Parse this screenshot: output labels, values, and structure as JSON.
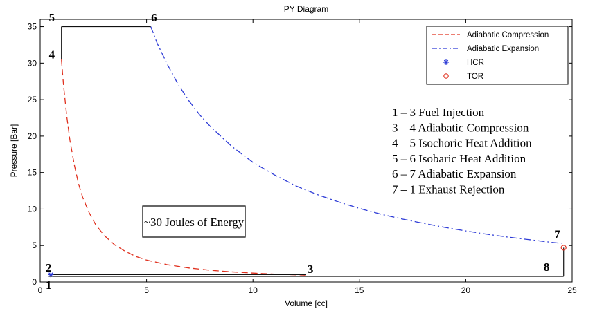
{
  "chart_data": {
    "type": "line",
    "title": "PY Diagram",
    "xlabel": "Volume [cc]",
    "ylabel": "Pressure [Bar]",
    "xlim": [
      0,
      25
    ],
    "ylim": [
      0,
      36
    ],
    "xticks": [
      0,
      5,
      10,
      15,
      20,
      25
    ],
    "yticks": [
      0,
      5,
      10,
      15,
      20,
      25,
      30,
      35
    ],
    "grid": false,
    "legend_position": "top-right",
    "series": [
      {
        "name": "Adiabatic Compression",
        "style": "dashed",
        "color": "#e0301e",
        "x": [
          1.0,
          1.1,
          1.25,
          1.4,
          1.6,
          1.8,
          2.0,
          2.3,
          2.6,
          3.0,
          3.5,
          4.0,
          4.5,
          5.0,
          6.0,
          7.0,
          8.0,
          9.0,
          10.0,
          11.0,
          12.0,
          12.5
        ],
        "y": [
          30.5,
          26.9,
          22.7,
          19.4,
          16.1,
          13.5,
          11.6,
          9.5,
          7.9,
          6.4,
          5.1,
          4.2,
          3.5,
          3.0,
          2.35,
          1.91,
          1.6,
          1.38,
          1.21,
          1.08,
          0.98,
          0.93
        ]
      },
      {
        "name": "Adiabatic Expansion",
        "style": "dashdot",
        "color": "#2d3bd6",
        "x": [
          5.2,
          5.5,
          6.0,
          6.5,
          7.0,
          7.5,
          8.0,
          9.0,
          10.0,
          11.0,
          12.0,
          13.0,
          14.0,
          15.0,
          16.0,
          17.0,
          18.0,
          19.0,
          20.0,
          21.0,
          22.0,
          23.0,
          24.0,
          24.5
        ],
        "y": [
          35.0,
          32.7,
          29.7,
          27.0,
          24.8,
          22.9,
          21.3,
          18.6,
          16.4,
          14.7,
          13.2,
          12.0,
          11.0,
          10.1,
          9.3,
          8.65,
          8.05,
          7.5,
          7.0,
          6.55,
          6.15,
          5.8,
          5.45,
          5.3
        ]
      },
      {
        "name": "HCR",
        "style": "marker-star",
        "color": "#2d3bd6",
        "x": [
          0.5
        ],
        "y": [
          1.0
        ]
      },
      {
        "name": "TOR",
        "style": "marker-circle",
        "color": "#e0301e",
        "x": [
          24.6
        ],
        "y": [
          4.7
        ]
      }
    ],
    "cycle_lines": [
      {
        "from": [
          1.0,
          30.5
        ],
        "to": [
          1.0,
          35.0
        ]
      },
      {
        "from": [
          1.0,
          35.0
        ],
        "to": [
          5.2,
          35.0
        ]
      },
      {
        "from": [
          0.4,
          1.0
        ],
        "to": [
          12.5,
          1.0
        ]
      },
      {
        "from": [
          0.4,
          0.75
        ],
        "to": [
          12.6,
          0.75
        ]
      },
      {
        "from": [
          12.6,
          0.75
        ],
        "to": [
          24.6,
          0.75
        ]
      },
      {
        "from": [
          24.6,
          0.75
        ],
        "to": [
          24.6,
          4.7
        ]
      }
    ],
    "point_labels": [
      {
        "text": "1",
        "x": 0.4,
        "y": -0.4
      },
      {
        "text": "2",
        "x": 0.4,
        "y": 2.0
      },
      {
        "text": "3",
        "x": 12.7,
        "y": 1.8
      },
      {
        "text": "4",
        "x": 0.55,
        "y": 31.2
      },
      {
        "text": "5",
        "x": 0.55,
        "y": 36.3
      },
      {
        "text": "6",
        "x": 5.35,
        "y": 36.3
      },
      {
        "text": "7",
        "x": 24.3,
        "y": 6.6
      },
      {
        "text": "8",
        "x": 23.8,
        "y": 2.1
      }
    ],
    "annotation_lines": [
      "1 – 3  Fuel Injection",
      "3 – 4 Adiabatic Compression",
      "4 – 5  Isochoric Heat Addition",
      "5 – 6  Isobaric Heat Addition",
      "6 – 7  Adiabatic Expansion",
      "7 – 1  Exhaust Rejection"
    ],
    "energy_box_text": "~30 Joules of Energy"
  }
}
